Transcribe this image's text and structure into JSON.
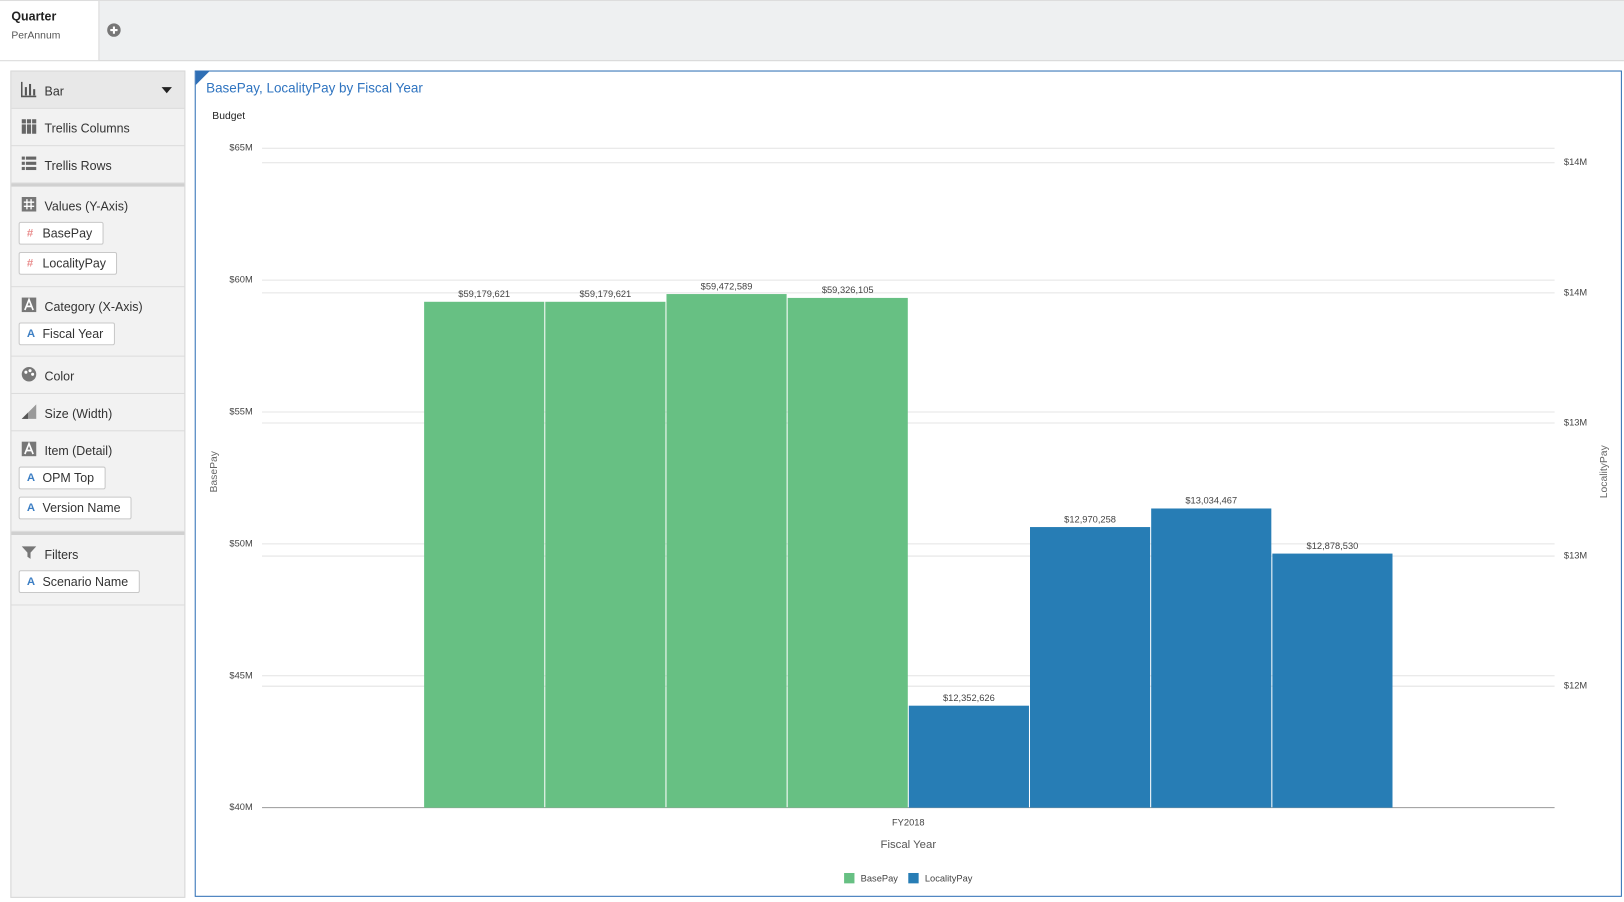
{
  "tabs": [
    {
      "title": "Quarter",
      "subtitle": "PerAnnum"
    }
  ],
  "sidebar": {
    "chart_type": "Bar",
    "rows": [
      "Trellis Columns",
      "Trellis Rows"
    ],
    "sections": [
      {
        "title": "Values (Y-Axis)",
        "items": [
          "BasePay",
          "LocalityPay"
        ]
      },
      {
        "title": "Category (X-Axis)",
        "items": [
          "Fiscal Year"
        ]
      },
      {
        "title": "Color",
        "items": []
      },
      {
        "title": "Size (Width)",
        "items": []
      },
      {
        "title": "Item (Detail)",
        "items": [
          "OPM Top",
          "Version Name"
        ]
      },
      {
        "title": "Filters",
        "items": [
          "Scenario Name"
        ]
      }
    ]
  },
  "chart_data": {
    "type": "bar",
    "title": "BasePay, LocalityPay by Fiscal Year",
    "subtitle": "Budget",
    "xlabel": "Fiscal Year",
    "ylabel": "BasePay",
    "y2label": "LocalityPay",
    "group": "FY2018",
    "categories": [
      null,
      null,
      null,
      null
    ],
    "series": [
      {
        "name": "BasePay",
        "color": "#67c083",
        "values": [
          59179621,
          59179621,
          59472589,
          59326105
        ],
        "value_labels": [
          "$59,179,621",
          "$59,179,621",
          "$59,472,589",
          "$59,326,105"
        ]
      },
      {
        "name": "LocalityPay",
        "color": "#277db5",
        "axis": "y2",
        "values": [
          12352626,
          12970258,
          13034467,
          12878530
        ],
        "value_labels": [
          "$12,352,626",
          "$12,970,258",
          "$13,034,467",
          "$12,878,530"
        ]
      }
    ],
    "ylim": [
      40000000,
      65000000
    ],
    "yticks": [
      {
        "value": 40000000,
        "label": "$40M"
      },
      {
        "value": 45000000,
        "label": "$45M"
      },
      {
        "value": 50000000,
        "label": "$50M"
      },
      {
        "value": 55000000,
        "label": "$55M"
      },
      {
        "value": 60000000,
        "label": "$60M"
      },
      {
        "value": 65000000,
        "label": "$65M"
      }
    ],
    "y2lim": [
      12000000,
      14280000
    ],
    "y2ticks": [
      {
        "value": 12420000,
        "label": "$12M"
      },
      {
        "value": 12870000,
        "label": "$13M"
      },
      {
        "value": 13330000,
        "label": "$13M"
      },
      {
        "value": 13780000,
        "label": "$14M"
      },
      {
        "value": 14230000,
        "label": "$14M"
      }
    ],
    "grid": true,
    "legend": "bottom"
  }
}
